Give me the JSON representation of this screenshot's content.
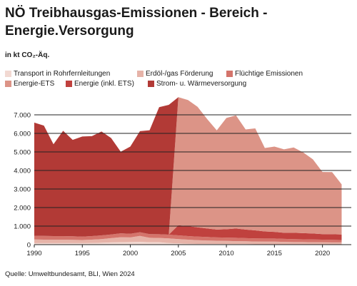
{
  "chart_data": {
    "type": "area",
    "title": "NÖ Treibhausgas-Emissionen - Bereich - Energie.Versorgung",
    "unit_label": "in kt CO₂-Äq.",
    "source": "Quelle: Umweltbundesamt, BLI, Wien 2024",
    "x": [
      1990,
      1991,
      1992,
      1993,
      1994,
      1995,
      1996,
      1997,
      1998,
      1999,
      2000,
      2001,
      2002,
      2003,
      2004,
      2005,
      2006,
      2007,
      2008,
      2009,
      2010,
      2011,
      2012,
      2013,
      2014,
      2015,
      2016,
      2017,
      2018,
      2019,
      2020,
      2021,
      2022
    ],
    "xticks": [
      "1990",
      "1995",
      "2000",
      "2005",
      "2010",
      "2015",
      "2020"
    ],
    "yticks": [
      "0",
      "1.000",
      "2.000",
      "3.000",
      "4.000",
      "5.000",
      "6.000",
      "7.000"
    ],
    "ylim": [
      0,
      7000
    ],
    "legend": [
      {
        "name": "Transport in Rohrfernleitungen",
        "color": "#f2d9d2"
      },
      {
        "name": "Erdöl-/gas Förderung",
        "color": "#e6b3a8"
      },
      {
        "name": "Flüchtige Emissionen",
        "color": "#d4746b"
      },
      {
        "name": "Energie-ETS",
        "color": "#dc9487"
      },
      {
        "name": "Energie (inkl. ETS)",
        "color": "#c0413e"
      },
      {
        "name": "Strom- u. Wärmeversorgung",
        "color": "#b23a36"
      }
    ],
    "series": [
      {
        "name": "Transport in Rohrfernleitungen",
        "color": "#f2d9d2",
        "values": [
          80,
          80,
          80,
          80,
          80,
          80,
          90,
          100,
          120,
          130,
          140,
          150,
          130,
          130,
          90,
          70,
          50,
          40,
          40,
          40,
          30,
          30,
          30,
          20,
          20,
          20,
          20,
          20,
          20,
          20,
          20,
          20,
          20
        ]
      },
      {
        "name": "Erdöl-/gas Förderung",
        "color": "#e6b3a8",
        "values": [
          200,
          190,
          190,
          190,
          180,
          170,
          180,
          200,
          230,
          270,
          250,
          320,
          240,
          230,
          250,
          230,
          220,
          200,
          180,
          170,
          170,
          160,
          150,
          150,
          140,
          140,
          130,
          120,
          120,
          110,
          110,
          100,
          100
        ]
      },
      {
        "name": "Flüchtige Emissionen",
        "color": "#d4746b",
        "values": [
          200,
          200,
          190,
          190,
          190,
          180,
          190,
          200,
          200,
          210,
          200,
          200,
          200,
          200,
          200,
          200,
          190,
          190,
          190,
          180,
          180,
          180,
          170,
          170,
          170,
          170,
          160,
          160,
          150,
          150,
          140,
          140,
          130
        ]
      },
      {
        "name": "Energie-ETS",
        "color": "#dc9487",
        "values": [
          null,
          null,
          null,
          null,
          null,
          null,
          null,
          null,
          null,
          null,
          null,
          null,
          null,
          null,
          null,
          6900,
          6800,
          6500,
          5900,
          5350,
          6000,
          6100,
          5400,
          5500,
          4500,
          4600,
          4500,
          4600,
          4350,
          4000,
          3350,
          3350,
          2700
        ]
      },
      {
        "name": "Energie (inkl. ETS)",
        "color": "#c0413e",
        "values": [
          null,
          null,
          null,
          null,
          null,
          null,
          null,
          null,
          null,
          null,
          null,
          null,
          null,
          null,
          null,
          550,
          540,
          500,
          460,
          420,
          450,
          500,
          460,
          430,
          380,
          360,
          330,
          340,
          330,
          320,
          300,
          300,
          300
        ]
      },
      {
        "name": "Strom- u. Wärmeversorgung",
        "color": "#b23a36",
        "values": [
          6100,
          5950,
          4950,
          5680,
          5200,
          5400,
          5390,
          5600,
          5200,
          4400,
          4700,
          5450,
          5600,
          6850,
          7000,
          null,
          null,
          null,
          null,
          null,
          null,
          null,
          null,
          null,
          null,
          null,
          null,
          null,
          null,
          null,
          null,
          null,
          null
        ]
      }
    ]
  }
}
